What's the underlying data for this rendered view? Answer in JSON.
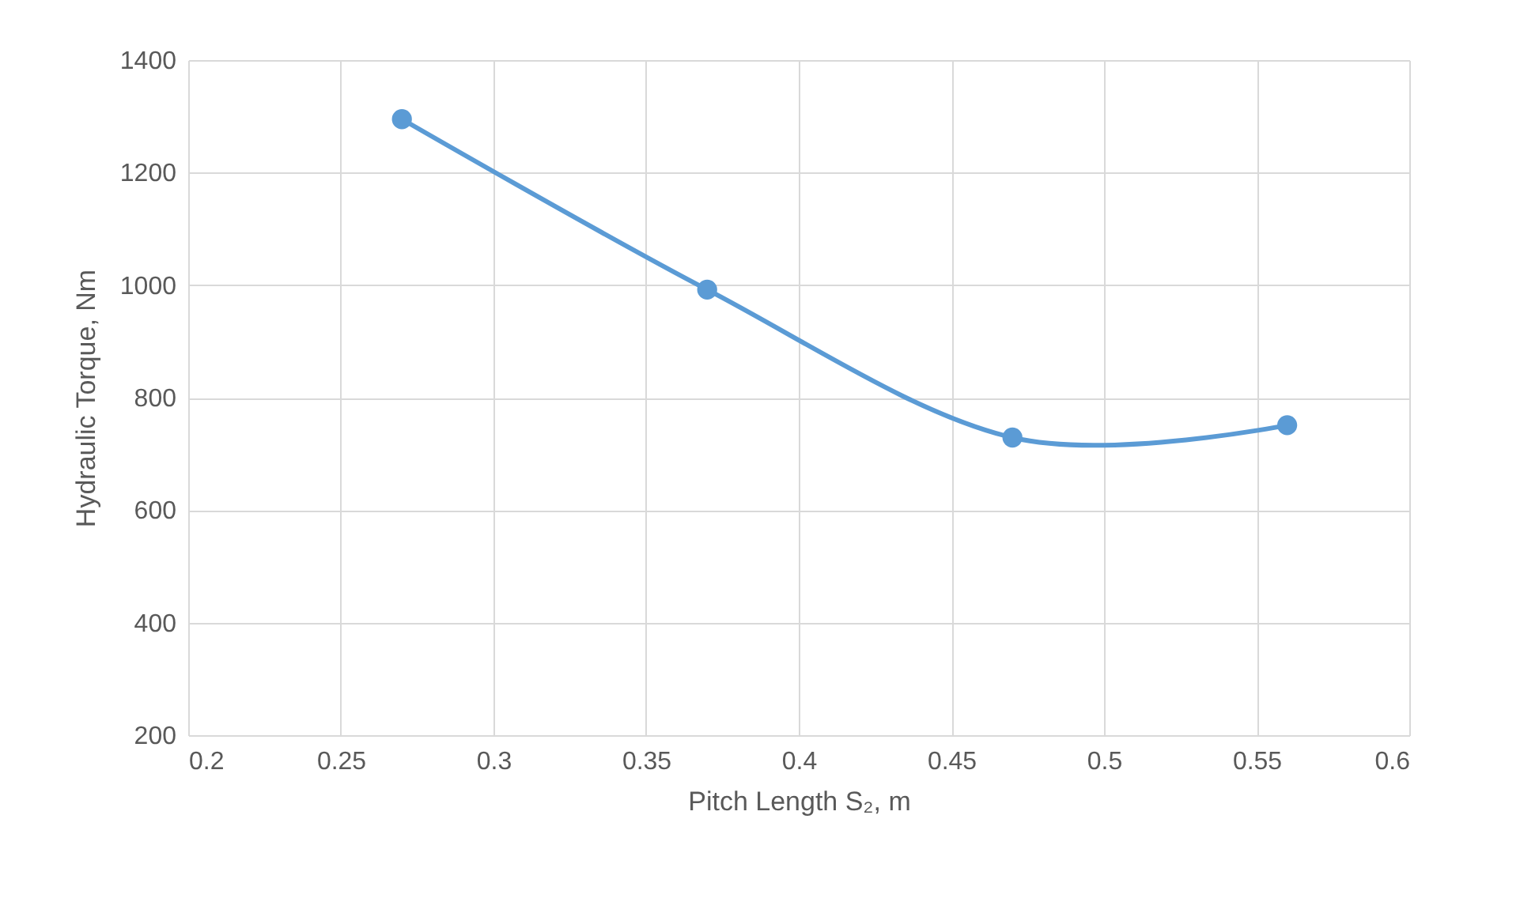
{
  "chart_data": {
    "type": "line",
    "xlabel": "Pitch Length S₂, m",
    "ylabel": "Hydraulic Torque, Nm",
    "x": [
      0.27,
      0.37,
      0.47,
      0.56
    ],
    "series": [
      {
        "color": "#5b9bd5",
        "values": [
          1295,
          992,
          729,
          751
        ]
      }
    ],
    "xlim": [
      0.2,
      0.6
    ],
    "xticks": [
      0.2,
      0.25,
      0.3,
      0.35,
      0.4,
      0.45,
      0.5,
      0.55,
      0.6
    ],
    "ylim": [
      200,
      1400
    ],
    "yticks": [
      200,
      400,
      600,
      800,
      1000,
      1200,
      1400
    ],
    "grid": true,
    "marker": "circle",
    "line_style": "solid"
  }
}
